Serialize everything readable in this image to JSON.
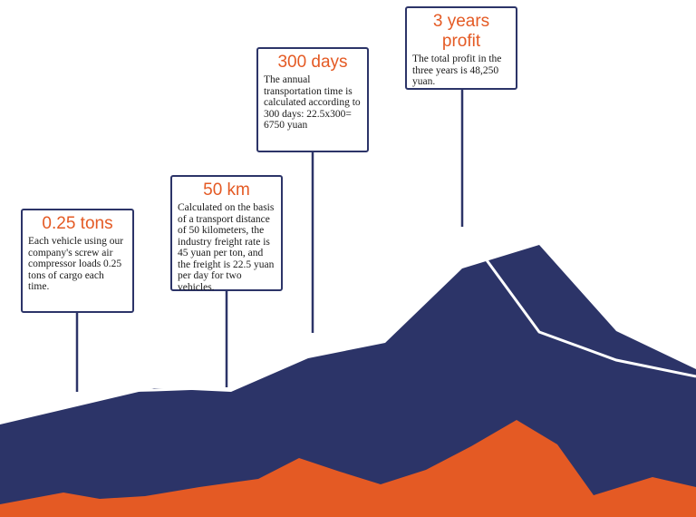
{
  "colors": {
    "navy": "#2c3468",
    "orange": "#e45a24",
    "line": "#ffffff"
  },
  "callouts": [
    {
      "title": "0.25 tons",
      "text": "Each vehicle using our company's screw air compressor loads 0.25 tons of cargo each time."
    },
    {
      "title": "50 km",
      "text": "Calculated on the basis of a transport distance of 50 kilometers, the industry freight rate is 45 yuan per ton, and the freight is 22.5 yuan per day for two vehicles."
    },
    {
      "title": "300 days",
      "text": "The annual transportation time is calculated according to 300 days: 22.5x300= 6750 yuan"
    },
    {
      "title": "3 years profit",
      "text": "The total profit in the three years is 48,250 yuan."
    }
  ]
}
